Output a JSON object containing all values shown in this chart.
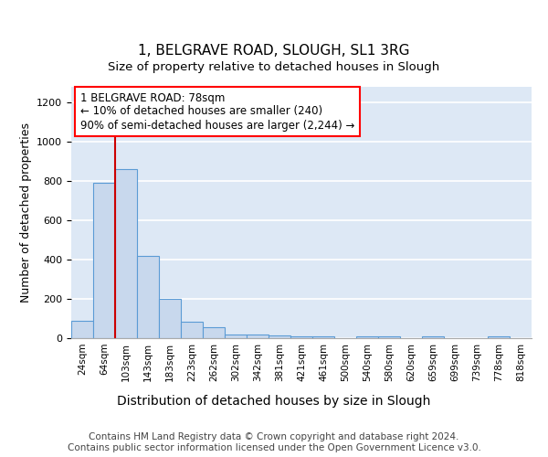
{
  "title1": "1, BELGRAVE ROAD, SLOUGH, SL1 3RG",
  "title2": "Size of property relative to detached houses in Slough",
  "xlabel": "Distribution of detached houses by size in Slough",
  "ylabel": "Number of detached properties",
  "bar_labels": [
    "24sqm",
    "64sqm",
    "103sqm",
    "143sqm",
    "183sqm",
    "223sqm",
    "262sqm",
    "302sqm",
    "342sqm",
    "381sqm",
    "421sqm",
    "461sqm",
    "500sqm",
    "540sqm",
    "580sqm",
    "620sqm",
    "659sqm",
    "699sqm",
    "739sqm",
    "778sqm",
    "818sqm"
  ],
  "bar_values": [
    90,
    790,
    860,
    420,
    200,
    85,
    55,
    20,
    20,
    12,
    10,
    10,
    0,
    10,
    10,
    0,
    10,
    0,
    0,
    10,
    0
  ],
  "bar_color": "#c8d8ed",
  "bar_edge_color": "#5b9bd5",
  "bg_color": "#dde8f5",
  "grid_color": "#ffffff",
  "annotation_text": "1 BELGRAVE ROAD: 78sqm\n← 10% of detached houses are smaller (240)\n90% of semi-detached houses are larger (2,244) →",
  "vline_x": 1.5,
  "vline_color": "#cc0000",
  "ylim": [
    0,
    1280
  ],
  "yticks": [
    0,
    200,
    400,
    600,
    800,
    1000,
    1200
  ],
  "footer_text": "Contains HM Land Registry data © Crown copyright and database right 2024.\nContains public sector information licensed under the Open Government Licence v3.0.",
  "title1_fontsize": 11,
  "title2_fontsize": 9.5,
  "xlabel_fontsize": 10,
  "ylabel_fontsize": 9,
  "annot_fontsize": 8.5,
  "footer_fontsize": 7.5
}
